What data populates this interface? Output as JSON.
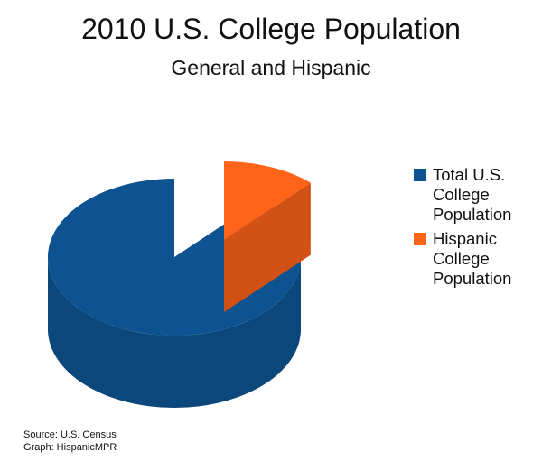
{
  "chart_data": {
    "type": "pie",
    "title": "2010 U.S. College Population",
    "subtitle": "General and Hispanic",
    "series": [
      {
        "name": "Total U.S.\nCollege\nPopulation",
        "value": 88,
        "color": "#0d5391"
      },
      {
        "name": "Hispanic\nCollege\nPopulation",
        "value": 12,
        "color": "#ff6418"
      }
    ],
    "legend_position": "right",
    "style": "3d-exploded"
  },
  "footer": {
    "source": "Source: U.S. Census",
    "graph": "Graph: HispanicMPR"
  }
}
